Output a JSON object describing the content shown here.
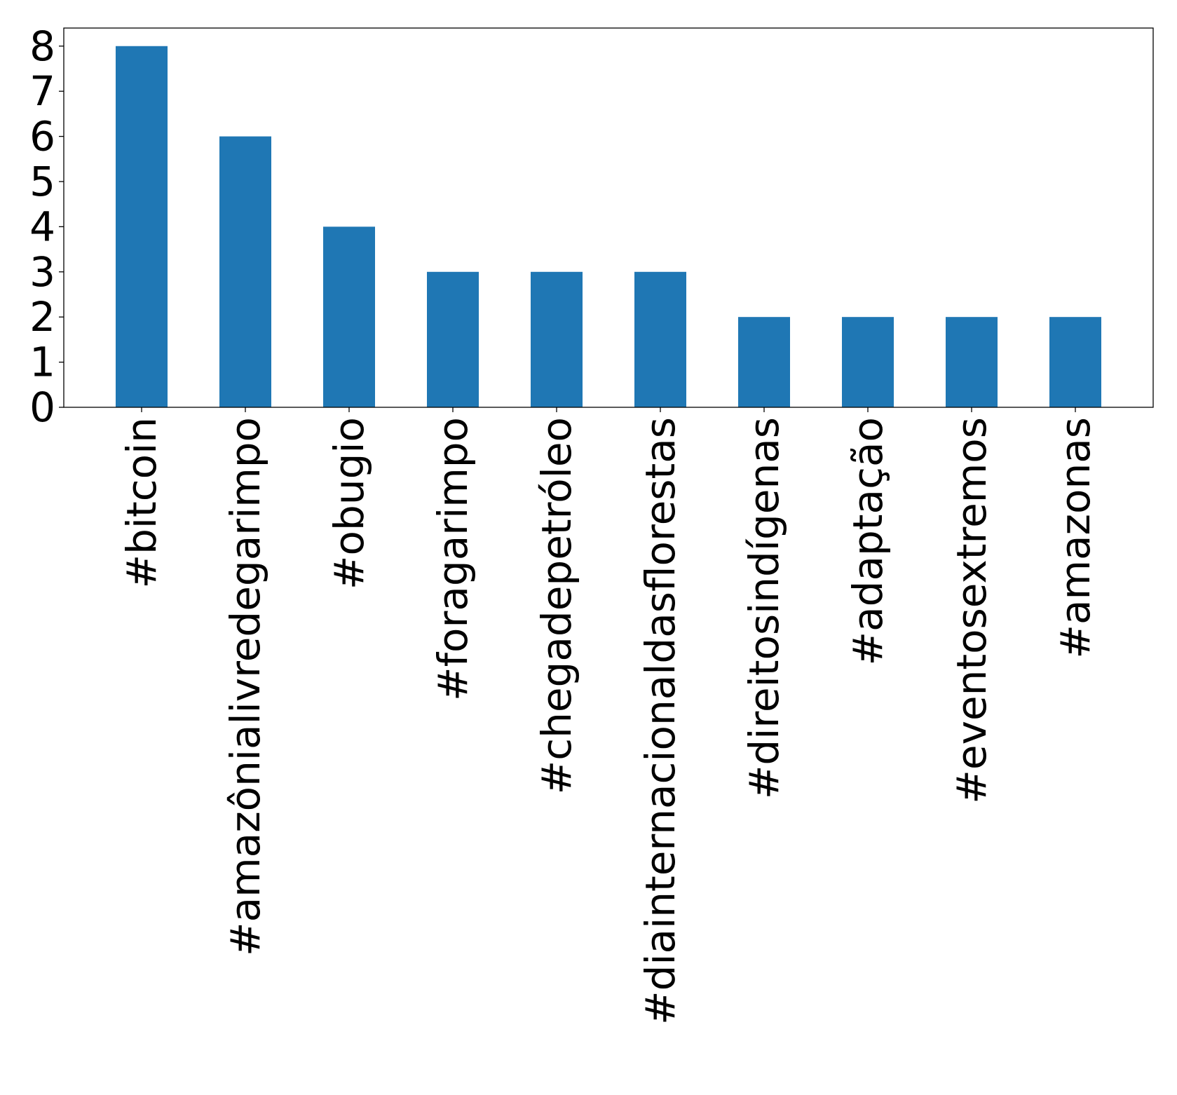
{
  "chart_data": {
    "type": "bar",
    "categories": [
      "#bitcoin",
      "#amazônialivredegarimpo",
      "#obugio",
      "#foragarimpo",
      "#chegadepetróleo",
      "#diainternacionaldasflorestas",
      "#direitosindígenas",
      "#adaptação",
      "#eventosextremos",
      "#amazonas"
    ],
    "values": [
      8,
      6,
      4,
      3,
      3,
      3,
      2,
      2,
      2,
      2
    ],
    "ylim": [
      0,
      8.4
    ],
    "yticks": [
      "0",
      "1",
      "2",
      "3",
      "4",
      "5",
      "6",
      "7",
      "8"
    ],
    "bar_color": "#1f77b4",
    "grid": false,
    "legend": false,
    "xlabel_rotation": "vertical"
  }
}
